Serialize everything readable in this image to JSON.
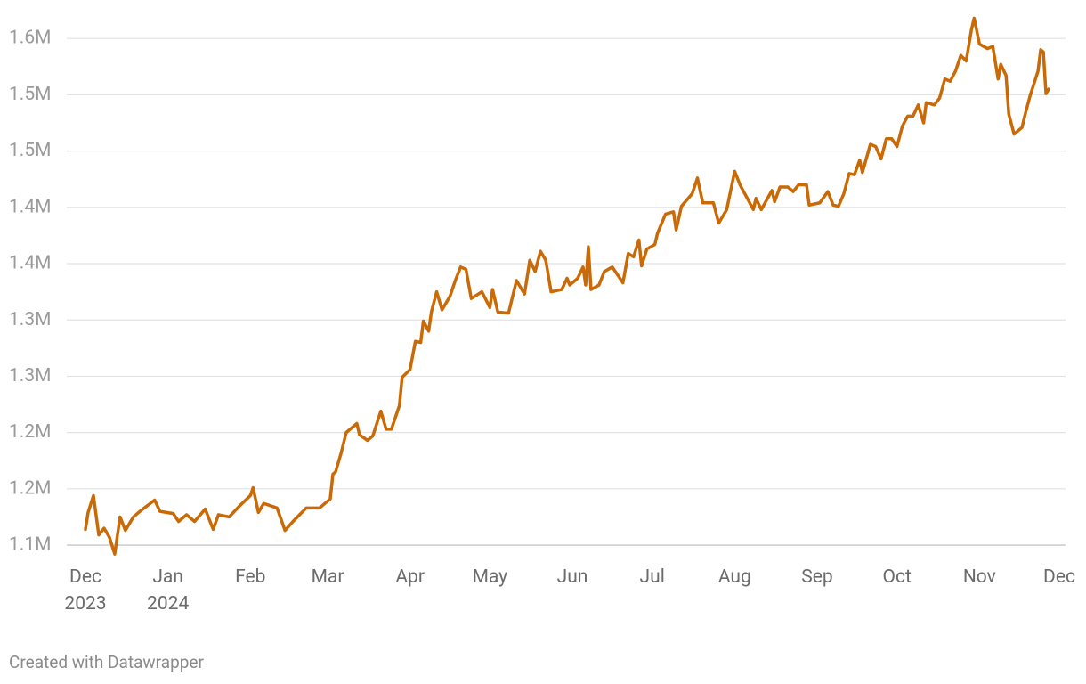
{
  "chart_data": {
    "type": "line",
    "x": [
      "2023-12-01",
      "2023-12-02",
      "2023-12-04",
      "2023-12-06",
      "2023-12-08",
      "2023-12-10",
      "2023-12-12",
      "2023-12-14",
      "2023-12-16",
      "2023-12-19",
      "2023-12-22",
      "2023-12-27",
      "2023-12-29",
      "2024-01-03",
      "2024-01-05",
      "2024-01-08",
      "2024-01-11",
      "2024-01-15",
      "2024-01-18",
      "2024-01-20",
      "2024-01-24",
      "2024-01-28",
      "2024-02-01",
      "2024-02-02",
      "2024-02-04",
      "2024-02-06",
      "2024-02-11",
      "2024-02-14",
      "2024-02-17",
      "2024-02-22",
      "2024-02-27",
      "2024-03-02",
      "2024-03-03",
      "2024-03-04",
      "2024-03-06",
      "2024-03-08",
      "2024-03-12",
      "2024-03-13",
      "2024-03-16",
      "2024-03-18",
      "2024-03-21",
      "2024-03-23",
      "2024-03-25",
      "2024-03-28",
      "2024-03-29",
      "2024-04-01",
      "2024-04-03",
      "2024-04-05",
      "2024-04-06",
      "2024-04-08",
      "2024-04-09",
      "2024-04-11",
      "2024-04-13",
      "2024-04-16",
      "2024-04-18",
      "2024-04-20",
      "2024-04-22",
      "2024-04-24",
      "2024-04-28",
      "2024-05-01",
      "2024-05-02",
      "2024-05-04",
      "2024-05-08",
      "2024-05-11",
      "2024-05-14",
      "2024-05-16",
      "2024-05-18",
      "2024-05-20",
      "2024-05-22",
      "2024-05-24",
      "2024-05-28",
      "2024-05-30",
      "2024-05-31",
      "2024-06-03",
      "2024-06-05",
      "2024-06-06",
      "2024-06-07",
      "2024-06-08",
      "2024-06-11",
      "2024-06-13",
      "2024-06-16",
      "2024-06-20",
      "2024-06-22",
      "2024-06-24",
      "2024-06-26",
      "2024-06-27",
      "2024-06-29",
      "2024-07-02",
      "2024-07-03",
      "2024-07-06",
      "2024-07-09",
      "2024-07-10",
      "2024-07-12",
      "2024-07-16",
      "2024-07-18",
      "2024-07-20",
      "2024-07-24",
      "2024-07-26",
      "2024-07-29",
      "2024-08-01",
      "2024-08-03",
      "2024-08-08",
      "2024-08-09",
      "2024-08-11",
      "2024-08-15",
      "2024-08-16",
      "2024-08-18",
      "2024-08-21",
      "2024-08-23",
      "2024-08-25",
      "2024-08-28",
      "2024-08-29",
      "2024-09-02",
      "2024-09-05",
      "2024-09-07",
      "2024-09-09",
      "2024-09-11",
      "2024-09-13",
      "2024-09-15",
      "2024-09-17",
      "2024-09-18",
      "2024-09-21",
      "2024-09-23",
      "2024-09-25",
      "2024-09-27",
      "2024-09-29",
      "2024-10-01",
      "2024-10-03",
      "2024-10-05",
      "2024-10-07",
      "2024-10-09",
      "2024-10-11",
      "2024-10-12",
      "2024-10-15",
      "2024-10-17",
      "2024-10-19",
      "2024-10-21",
      "2024-10-23",
      "2024-10-25",
      "2024-10-27",
      "2024-10-29",
      "2024-10-30",
      "2024-11-01",
      "2024-11-04",
      "2024-11-06",
      "2024-11-08",
      "2024-11-09",
      "2024-11-11",
      "2024-11-12",
      "2024-11-14",
      "2024-11-17",
      "2024-11-18",
      "2024-11-20",
      "2024-11-23",
      "2024-11-24",
      "2024-11-25",
      "2024-11-26",
      "2024-11-27"
    ],
    "values": [
      1114000,
      1129000,
      1144000,
      1109000,
      1115000,
      1107000,
      1092000,
      1125000,
      1113000,
      1125000,
      1131000,
      1140000,
      1130000,
      1128000,
      1121000,
      1127000,
      1121000,
      1132000,
      1114000,
      1127000,
      1125000,
      1135000,
      1144000,
      1151000,
      1129000,
      1137000,
      1133000,
      1113000,
      1121000,
      1133000,
      1133000,
      1141000,
      1163000,
      1165000,
      1181000,
      1200000,
      1208000,
      1198000,
      1193000,
      1197000,
      1219000,
      1203000,
      1203000,
      1224000,
      1249000,
      1256000,
      1281000,
      1280000,
      1299000,
      1290000,
      1307000,
      1325000,
      1309000,
      1321000,
      1335000,
      1347000,
      1345000,
      1319000,
      1325000,
      1311000,
      1327000,
      1307000,
      1306000,
      1335000,
      1323000,
      1353000,
      1343000,
      1361000,
      1353000,
      1325000,
      1327000,
      1337000,
      1331000,
      1337000,
      1347000,
      1331000,
      1365000,
      1327000,
      1331000,
      1343000,
      1347000,
      1333000,
      1359000,
      1356000,
      1371000,
      1348000,
      1363000,
      1367000,
      1377000,
      1394000,
      1396000,
      1380000,
      1401000,
      1412000,
      1426000,
      1404000,
      1404000,
      1386000,
      1398000,
      1432000,
      1420000,
      1398000,
      1408000,
      1398000,
      1415000,
      1405000,
      1418000,
      1418000,
      1414000,
      1420000,
      1420000,
      1402000,
      1404000,
      1414000,
      1402000,
      1401000,
      1412000,
      1430000,
      1429000,
      1442000,
      1431000,
      1456000,
      1454000,
      1443000,
      1461000,
      1461000,
      1454000,
      1472000,
      1481000,
      1481000,
      1491000,
      1475000,
      1493000,
      1491000,
      1497000,
      1514000,
      1512000,
      1521000,
      1535000,
      1530000,
      1558000,
      1568000,
      1545000,
      1541000,
      1543000,
      1514000,
      1527000,
      1517000,
      1483000,
      1465000,
      1471000,
      1481000,
      1499000,
      1521000,
      1540000,
      1538000,
      1501000,
      1505000
    ],
    "color": "#c96a06",
    "xlim": [
      "2023-12-01",
      "2024-12-01"
    ],
    "xticks": [
      {
        "value": "2023-12-01",
        "label": "Dec 2023"
      },
      {
        "value": "2024-01-01",
        "label": "Jan 2024"
      },
      {
        "value": "2024-02-01",
        "label": "Feb"
      },
      {
        "value": "2024-03-01",
        "label": "Mar"
      },
      {
        "value": "2024-04-01",
        "label": "Apr"
      },
      {
        "value": "2024-05-01",
        "label": "May"
      },
      {
        "value": "2024-06-01",
        "label": "Jun"
      },
      {
        "value": "2024-07-01",
        "label": "Jul"
      },
      {
        "value": "2024-08-01",
        "label": "Aug"
      },
      {
        "value": "2024-09-01",
        "label": "Sep"
      },
      {
        "value": "2024-10-01",
        "label": "Oct"
      },
      {
        "value": "2024-11-01",
        "label": "Nov"
      },
      {
        "value": "2024-12-01",
        "label": "Dec"
      }
    ],
    "ylim": [
      1085000,
      1575000
    ],
    "yticks": [
      {
        "value": 1100000,
        "label": "1.1M"
      },
      {
        "value": 1150000,
        "label": "1.2M"
      },
      {
        "value": 1200000,
        "label": "1.2M"
      },
      {
        "value": 1250000,
        "label": "1.3M"
      },
      {
        "value": 1300000,
        "label": "1.3M"
      },
      {
        "value": 1350000,
        "label": "1.4M"
      },
      {
        "value": 1400000,
        "label": "1.4M"
      },
      {
        "value": 1450000,
        "label": "1.5M"
      },
      {
        "value": 1500000,
        "label": "1.5M"
      },
      {
        "value": 1550000,
        "label": "1.6M"
      }
    ],
    "grid": true,
    "credit": "Created with Datawrapper"
  }
}
